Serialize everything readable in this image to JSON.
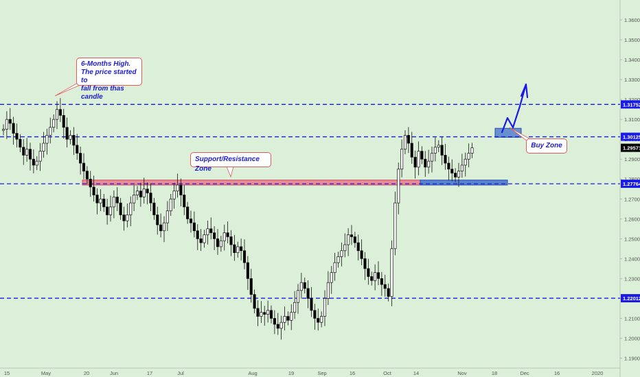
{
  "chart_data": {
    "type": "candlestick",
    "y_range": [
      1.185,
      1.37
    ],
    "y_ticks": [
      "1.36000",
      "1.35000",
      "1.34000",
      "1.33000",
      "1.32000",
      "1.31000",
      "1.30000",
      "1.29000",
      "1.28000",
      "1.27000",
      "1.26000",
      "1.25000",
      "1.24000",
      "1.23000",
      "1.22000",
      "1.21000",
      "1.20000",
      "1.19000"
    ],
    "x_ticks": [
      "15",
      "May",
      "20",
      "Jun",
      "17",
      "Jul",
      "Aug",
      "19",
      "Sep",
      "16",
      "Oct",
      "14",
      "Nov",
      "18",
      "Dec",
      "16",
      "2020"
    ],
    "horizontal_levels": [
      {
        "value": 1.31752,
        "label": "1.31752"
      },
      {
        "value": 1.30125,
        "label": "1.30125"
      },
      {
        "value": 1.27764,
        "label": "1.27764"
      },
      {
        "value": 1.22012,
        "label": "1.22012"
      }
    ],
    "current_price": {
      "value": 1.29571,
      "label": "1.29571"
    },
    "annotations": [
      {
        "text": "6-Months High.\nThe price started to\nfall from thas candle"
      },
      {
        "text": "Support/Resistance Zone"
      },
      {
        "text": "Buy Zone"
      }
    ],
    "colors": {
      "background": "#dcefd8",
      "level_line": "#1a1ae6",
      "label_bg": "#1a1ae6",
      "current_label_bg": "#000000",
      "candle_up": "#ffffff",
      "candle_down": "#000000",
      "zone_red": "#e87a8a",
      "zone_blue": "#4a78cc",
      "callout_border": "#e05a5a",
      "annotation_text": "#1d1dcf"
    },
    "closes": [
      1.305,
      1.31,
      1.308,
      1.303,
      1.3,
      1.296,
      1.292,
      1.295,
      1.29,
      1.287,
      1.289,
      1.294,
      1.298,
      1.302,
      1.306,
      1.31,
      1.315,
      1.312,
      1.306,
      1.3,
      1.302,
      1.297,
      1.293,
      1.288,
      1.284,
      1.28,
      1.276,
      1.272,
      1.268,
      1.27,
      1.266,
      1.262,
      1.266,
      1.271,
      1.268,
      1.262,
      1.259,
      1.262,
      1.268,
      1.272,
      1.274,
      1.271,
      1.275,
      1.273,
      1.268,
      1.262,
      1.257,
      1.254,
      1.258,
      1.264,
      1.27,
      1.274,
      1.277,
      1.272,
      1.266,
      1.26,
      1.258,
      1.254,
      1.25,
      1.248,
      1.252,
      1.255,
      1.253,
      1.25,
      1.246,
      1.249,
      1.253,
      1.251,
      1.247,
      1.243,
      1.246,
      1.244,
      1.238,
      1.23,
      1.222,
      1.215,
      1.211,
      1.213,
      1.212,
      1.214,
      1.21,
      1.207,
      1.205,
      1.208,
      1.211,
      1.209,
      1.213,
      1.218,
      1.224,
      1.228,
      1.225,
      1.22,
      1.214,
      1.21,
      1.208,
      1.211,
      1.22,
      1.228,
      1.233,
      1.238,
      1.241,
      1.244,
      1.247,
      1.252,
      1.251,
      1.248,
      1.244,
      1.24,
      1.235,
      1.231,
      1.229,
      1.233,
      1.23,
      1.227,
      1.225,
      1.221,
      1.245,
      1.268,
      1.285,
      1.295,
      1.302,
      1.298,
      1.291,
      1.286,
      1.294,
      1.29,
      1.286,
      1.289,
      1.293,
      1.296,
      1.297,
      1.292,
      1.288,
      1.285,
      1.283,
      1.281,
      1.284,
      1.287,
      1.29,
      1.293,
      1.2957
    ]
  },
  "layout_hints": {
    "chart_right_edge": 903,
    "candle_start_x": 5,
    "candle_step": 4.875
  }
}
